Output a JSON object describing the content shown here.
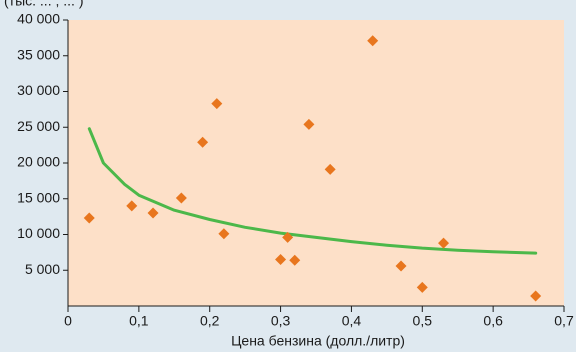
{
  "chart_data": {
    "type": "scatter",
    "title": "",
    "ylabel": "(тыс. ... ; ... )",
    "xlabel": "Цена бензина (долл./литр)",
    "xlim": [
      0,
      0.7
    ],
    "ylim": [
      0,
      40000
    ],
    "x_ticks": [
      0,
      0.1,
      0.2,
      0.3,
      0.4,
      0.5,
      0.6,
      0.7
    ],
    "x_tick_labels": [
      "0",
      "0,1",
      "0,2",
      "0,3",
      "0,4",
      "0,5",
      "0,6",
      "0,7"
    ],
    "y_ticks": [
      5000,
      10000,
      15000,
      20000,
      25000,
      30000,
      35000,
      40000
    ],
    "y_tick_labels": [
      "5 000",
      "10 000",
      "15 000",
      "20 000",
      "25 000",
      "30 000",
      "35 000",
      "40 000"
    ],
    "grid": false,
    "plot_background": "#fde0c8",
    "page_background": "#dfe9f0",
    "colors": {
      "points": "#e8761e",
      "trend_line": "#4cb84a",
      "axis": "#1a1a1a"
    },
    "series": [
      {
        "type": "scatter",
        "points": [
          {
            "x": 0.03,
            "y": 12300
          },
          {
            "x": 0.09,
            "y": 14000
          },
          {
            "x": 0.12,
            "y": 13000
          },
          {
            "x": 0.16,
            "y": 15100
          },
          {
            "x": 0.19,
            "y": 22900
          },
          {
            "x": 0.21,
            "y": 28300
          },
          {
            "x": 0.22,
            "y": 10100
          },
          {
            "x": 0.3,
            "y": 6500
          },
          {
            "x": 0.31,
            "y": 9600
          },
          {
            "x": 0.32,
            "y": 6400
          },
          {
            "x": 0.34,
            "y": 25400
          },
          {
            "x": 0.37,
            "y": 19100
          },
          {
            "x": 0.43,
            "y": 37100
          },
          {
            "x": 0.47,
            "y": 5600
          },
          {
            "x": 0.5,
            "y": 2600
          },
          {
            "x": 0.53,
            "y": 8800
          },
          {
            "x": 0.66,
            "y": 1400
          }
        ]
      },
      {
        "type": "line",
        "points": [
          {
            "x": 0.03,
            "y": 24800
          },
          {
            "x": 0.05,
            "y": 20000
          },
          {
            "x": 0.08,
            "y": 17000
          },
          {
            "x": 0.1,
            "y": 15500
          },
          {
            "x": 0.15,
            "y": 13400
          },
          {
            "x": 0.2,
            "y": 12100
          },
          {
            "x": 0.25,
            "y": 11000
          },
          {
            "x": 0.3,
            "y": 10200
          },
          {
            "x": 0.35,
            "y": 9600
          },
          {
            "x": 0.4,
            "y": 9000
          },
          {
            "x": 0.45,
            "y": 8500
          },
          {
            "x": 0.5,
            "y": 8100
          },
          {
            "x": 0.55,
            "y": 7800
          },
          {
            "x": 0.6,
            "y": 7600
          },
          {
            "x": 0.66,
            "y": 7400
          }
        ]
      }
    ]
  }
}
